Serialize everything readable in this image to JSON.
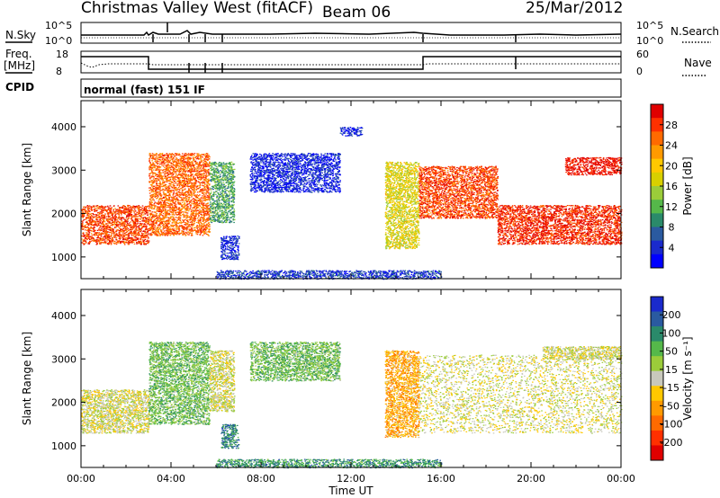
{
  "header": {
    "station": "Christmas Valley West (fitACF)",
    "beam": "Beam 06",
    "date": "25/Mar/2012"
  },
  "top_panels": {
    "nsky_label": "N.Sky",
    "nsky_ticks": [
      "10^5",
      "10^0"
    ],
    "nsearch_label": "N.Search",
    "nsearch_ticks": [
      "10^5",
      "10^0"
    ],
    "freq_label": "Freq.",
    "freq_unit": "[MHz]",
    "freq_ticks": [
      "18",
      "8"
    ],
    "nave_label": "Nave",
    "nave_ticks": [
      "60",
      "0"
    ],
    "cpid_label": "CPID",
    "cpid_text": "normal (fast) 151 IF"
  },
  "chart_data": [
    {
      "type": "heatmap",
      "name": "power-panel",
      "ylabel": "Slant Range [km]",
      "xlabel": "",
      "y_ticks": [
        "4000",
        "3000",
        "2000",
        "1000"
      ],
      "ylim": [
        500,
        4600
      ],
      "xlim": [
        0,
        24
      ],
      "colorbar": {
        "label": "Power [dB]",
        "ticks": [
          "28",
          "24",
          "20",
          "16",
          "12",
          "8",
          "4"
        ],
        "colors": [
          "#e00000",
          "#ff3000",
          "#ff6a00",
          "#ff9a00",
          "#ffc800",
          "#d8d000",
          "#9bcc3a",
          "#55b84a",
          "#2a8a6a",
          "#2a5aa0",
          "#1a2acc",
          "#0000ff"
        ]
      },
      "regions": [
        {
          "t": [
            0,
            3.0
          ],
          "r": [
            1300,
            2200
          ],
          "level": 0.85
        },
        {
          "t": [
            3.0,
            5.7
          ],
          "r": [
            1500,
            3400
          ],
          "level": 0.8
        },
        {
          "t": [
            5.7,
            6.8
          ],
          "r": [
            1800,
            3200
          ],
          "level": 0.35
        },
        {
          "t": [
            6.2,
            7.0
          ],
          "r": [
            950,
            1500
          ],
          "level": 0.12
        },
        {
          "t": [
            7.5,
            11.5
          ],
          "r": [
            2500,
            3400
          ],
          "level": 0.1
        },
        {
          "t": [
            11.5,
            12.5
          ],
          "r": [
            3800,
            4000
          ],
          "level": 0.1
        },
        {
          "t": [
            13.5,
            15.0
          ],
          "r": [
            1200,
            3200
          ],
          "level": 0.55
        },
        {
          "t": [
            15.0,
            18.5
          ],
          "r": [
            1900,
            3100
          ],
          "level": 0.85
        },
        {
          "t": [
            18.5,
            24
          ],
          "r": [
            1300,
            2200
          ],
          "level": 0.9
        },
        {
          "t": [
            21.5,
            24
          ],
          "r": [
            2900,
            3300
          ],
          "level": 0.95
        },
        {
          "t": [
            6.0,
            16.0
          ],
          "r": [
            500,
            700
          ],
          "level": 0.15
        }
      ]
    },
    {
      "type": "heatmap",
      "name": "velocity-panel",
      "ylabel": "Slant Range [km]",
      "xlabel": "Time UT",
      "x_ticks": [
        "00:00",
        "04:00",
        "08:00",
        "12:00",
        "16:00",
        "20:00",
        "00:00"
      ],
      "y_ticks": [
        "4000",
        "3000",
        "2000",
        "1000"
      ],
      "ylim": [
        500,
        4600
      ],
      "xlim": [
        0,
        24
      ],
      "colorbar": {
        "label": "Velocity [m s⁻¹]",
        "ticks": [
          "200",
          "100",
          "50",
          "15",
          "-15",
          "-50",
          "-100",
          "-200"
        ],
        "colors": [
          "#1a2acc",
          "#2a5aa0",
          "#2a8a6a",
          "#55b84a",
          "#9bcc3a",
          "#c8c8bc",
          "#ffc800",
          "#ff9a00",
          "#ff6a00",
          "#ff3000",
          "#e00000"
        ]
      },
      "regions": [
        {
          "t": [
            0,
            3.0
          ],
          "r": [
            1300,
            2300
          ],
          "level": 0.5
        },
        {
          "t": [
            3.0,
            5.7
          ],
          "r": [
            1500,
            3400
          ],
          "level": 0.65
        },
        {
          "t": [
            5.7,
            6.8
          ],
          "r": [
            1800,
            3200
          ],
          "level": 0.5
        },
        {
          "t": [
            6.2,
            7.0
          ],
          "r": [
            950,
            1500
          ],
          "level": 0.8
        },
        {
          "t": [
            7.5,
            11.5
          ],
          "r": [
            2500,
            3400
          ],
          "level": 0.65
        },
        {
          "t": [
            13.5,
            15.0
          ],
          "r": [
            1200,
            3200
          ],
          "level": 0.35
        },
        {
          "t": [
            15.0,
            24
          ],
          "r": [
            1300,
            3100
          ],
          "level": 0.5
        },
        {
          "t": [
            20.5,
            24
          ],
          "r": [
            3000,
            3300
          ],
          "level": 0.5
        },
        {
          "t": [
            6.0,
            16.0
          ],
          "r": [
            500,
            700
          ],
          "level": 0.75
        }
      ]
    }
  ]
}
